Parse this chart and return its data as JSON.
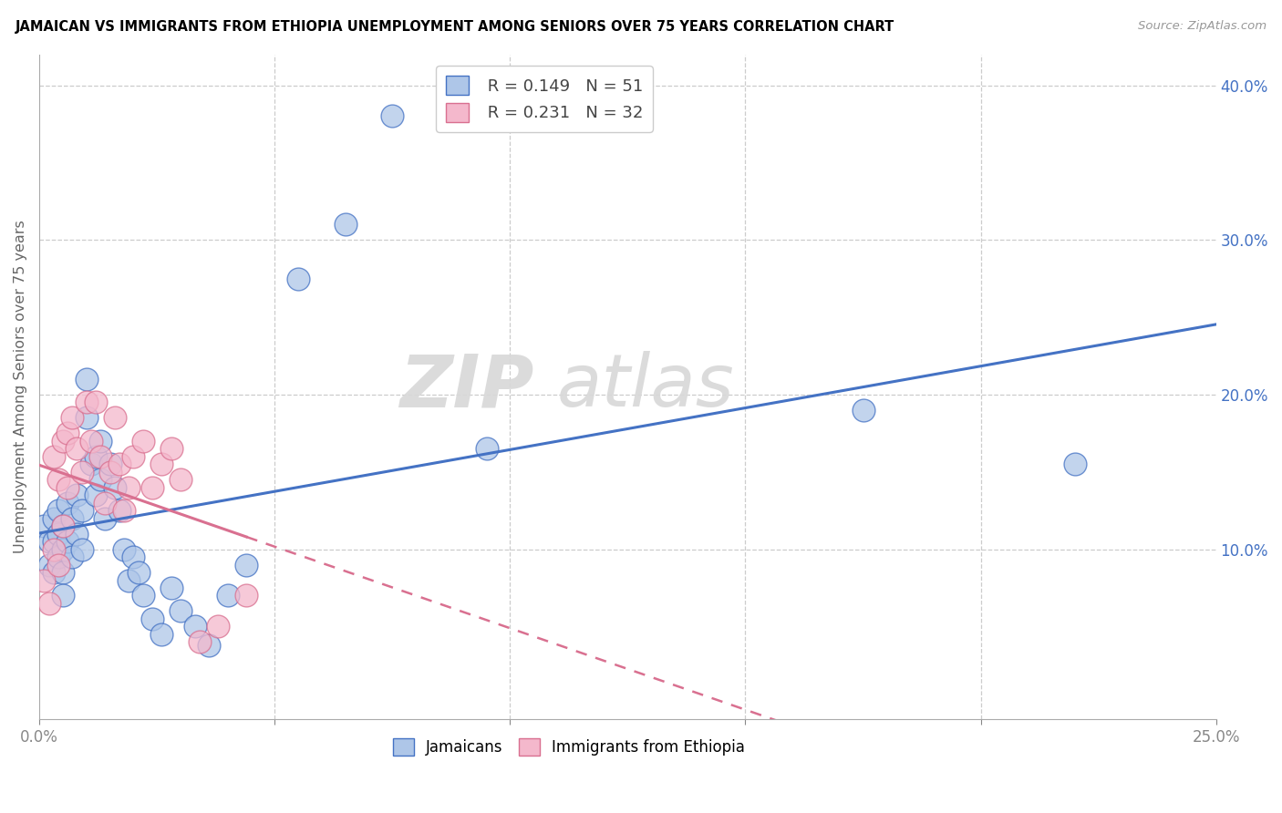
{
  "title": "JAMAICAN VS IMMIGRANTS FROM ETHIOPIA UNEMPLOYMENT AMONG SENIORS OVER 75 YEARS CORRELATION CHART",
  "source": "Source: ZipAtlas.com",
  "ylabel_label": "Unemployment Among Seniors over 75 years",
  "legend1_r": "0.149",
  "legend1_n": "51",
  "legend2_r": "0.231",
  "legend2_n": "32",
  "blue_color": "#aec6e8",
  "pink_color": "#f4b8cc",
  "blue_line_color": "#4472c4",
  "pink_line_color": "#d97090",
  "watermark": "ZIPatlas",
  "jamaican_x": [
    0.001,
    0.002,
    0.002,
    0.003,
    0.003,
    0.003,
    0.004,
    0.004,
    0.004,
    0.005,
    0.005,
    0.005,
    0.005,
    0.006,
    0.006,
    0.007,
    0.007,
    0.008,
    0.008,
    0.009,
    0.009,
    0.01,
    0.01,
    0.011,
    0.012,
    0.012,
    0.013,
    0.013,
    0.014,
    0.015,
    0.016,
    0.017,
    0.018,
    0.019,
    0.02,
    0.021,
    0.022,
    0.024,
    0.026,
    0.028,
    0.03,
    0.033,
    0.036,
    0.04,
    0.044,
    0.055,
    0.065,
    0.075,
    0.095,
    0.175,
    0.22
  ],
  "jamaican_y": [
    0.115,
    0.105,
    0.09,
    0.12,
    0.105,
    0.085,
    0.125,
    0.11,
    0.095,
    0.115,
    0.1,
    0.085,
    0.07,
    0.13,
    0.105,
    0.12,
    0.095,
    0.135,
    0.11,
    0.125,
    0.1,
    0.21,
    0.185,
    0.155,
    0.16,
    0.135,
    0.17,
    0.145,
    0.12,
    0.155,
    0.14,
    0.125,
    0.1,
    0.08,
    0.095,
    0.085,
    0.07,
    0.055,
    0.045,
    0.075,
    0.06,
    0.05,
    0.038,
    0.07,
    0.09,
    0.275,
    0.31,
    0.38,
    0.165,
    0.19,
    0.155
  ],
  "ethiopia_x": [
    0.001,
    0.002,
    0.003,
    0.003,
    0.004,
    0.004,
    0.005,
    0.005,
    0.006,
    0.006,
    0.007,
    0.008,
    0.009,
    0.01,
    0.011,
    0.012,
    0.013,
    0.014,
    0.015,
    0.016,
    0.017,
    0.018,
    0.019,
    0.02,
    0.022,
    0.024,
    0.026,
    0.028,
    0.03,
    0.034,
    0.038,
    0.044
  ],
  "ethiopia_y": [
    0.08,
    0.065,
    0.16,
    0.1,
    0.09,
    0.145,
    0.17,
    0.115,
    0.175,
    0.14,
    0.185,
    0.165,
    0.15,
    0.195,
    0.17,
    0.195,
    0.16,
    0.13,
    0.15,
    0.185,
    0.155,
    0.125,
    0.14,
    0.16,
    0.17,
    0.14,
    0.155,
    0.165,
    0.145,
    0.04,
    0.05,
    0.07
  ],
  "xmin": 0.0,
  "xmax": 0.25,
  "ymin": -0.01,
  "ymax": 0.42,
  "yticks": [
    0.1,
    0.2,
    0.3,
    0.4
  ],
  "xticks": [
    0.0,
    0.25
  ],
  "xgrid_ticks": [
    0.05,
    0.1,
    0.15,
    0.2
  ]
}
